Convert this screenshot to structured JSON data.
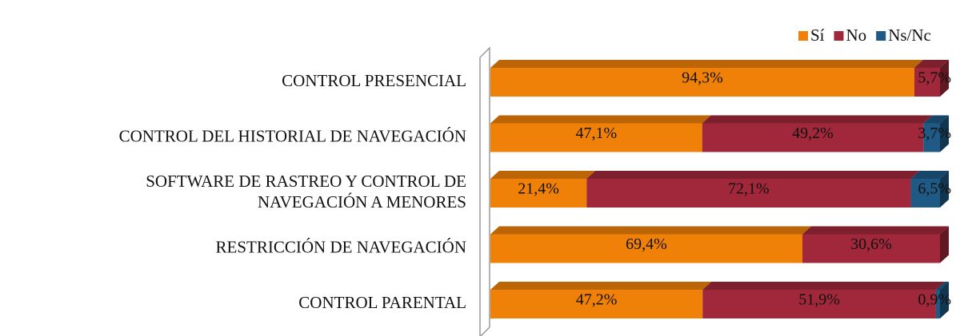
{
  "chart_data": {
    "type": "bar",
    "orientation": "horizontal",
    "stacked": true,
    "categories": [
      "CONTROL PRESENCIAL",
      "CONTROL DEL HISTORIAL DE NAVEGACIÓN",
      [
        "SOFTWARE DE RASTREO Y CONTROL DE",
        "NAVEGACIÓN A MENORES"
      ],
      "RESTRICCIÓN DE NAVEGACIÓN",
      "CONTROL PARENTAL"
    ],
    "series": [
      {
        "name": "Sí",
        "color": "#f08108",
        "values": [
          94.3,
          47.1,
          21.4,
          69.4,
          47.2
        ],
        "value_labels": [
          "94,3%",
          "47,1%",
          "21,4%",
          "69,4%",
          "47,2%"
        ]
      },
      {
        "name": "No",
        "color": "#a0283a",
        "values": [
          5.7,
          49.2,
          72.1,
          30.6,
          51.9
        ],
        "value_labels": [
          "5,7%",
          "49,2%",
          "72,1%",
          "30,6%",
          "51,9%"
        ]
      },
      {
        "name": "Ns/Nc",
        "color": "#1f5a85",
        "values": [
          null,
          3.7,
          6.5,
          null,
          0.9
        ],
        "value_labels": [
          null,
          "3,7%",
          "6,5%",
          null,
          "0,9%"
        ]
      }
    ],
    "legend": "top-right"
  }
}
